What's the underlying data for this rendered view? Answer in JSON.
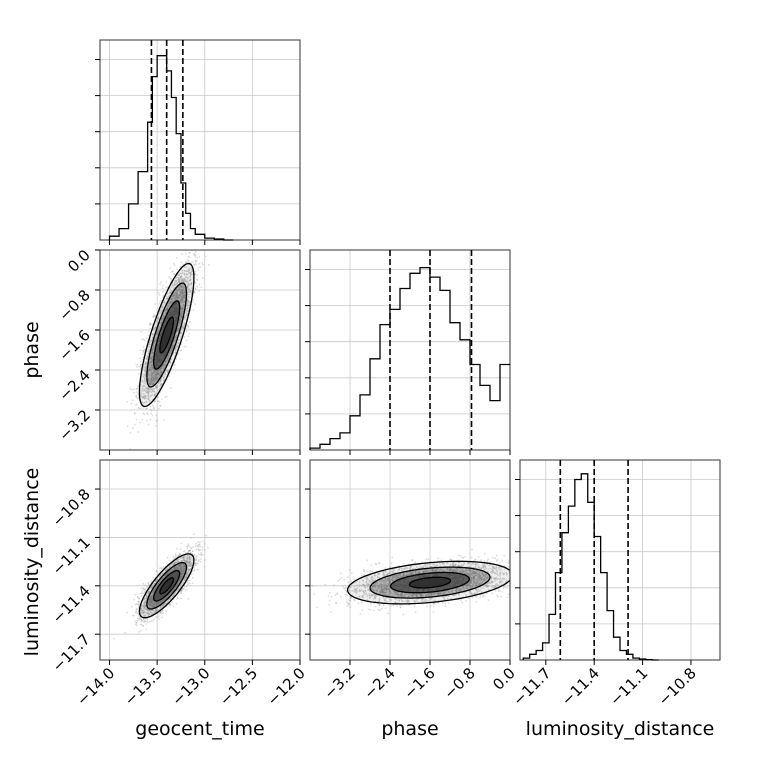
{
  "chart_data": {
    "type": "corner",
    "parameters": [
      "geocent_time",
      "phase",
      "luminosity_distance"
    ],
    "ranges": {
      "geocent_time": [
        -14.1,
        -12.0
      ],
      "phase": [
        -4.0,
        0.0
      ],
      "luminosity_distance": [
        -11.86,
        -10.62
      ]
    },
    "ticks": {
      "geocent_time": [
        "−14.0",
        "−13.5",
        "−13.0",
        "−12.5",
        "−12.0"
      ],
      "phase": [
        "−3.2",
        "−2.4",
        "−1.6",
        "−0.8",
        "0.0"
      ],
      "luminosity_distance": [
        "−11.7",
        "−11.4",
        "−11.1",
        "−10.8"
      ]
    },
    "tick_values": {
      "geocent_time": [
        -14.0,
        -13.5,
        -13.0,
        -12.5,
        -12.0
      ],
      "phase": [
        -3.2,
        -2.4,
        -1.6,
        -0.8,
        0.0
      ],
      "luminosity_distance": [
        -11.7,
        -11.4,
        -11.1,
        -10.8
      ]
    },
    "quantiles": {
      "geocent_time": [
        -13.56,
        -13.4,
        -13.23
      ],
      "phase": [
        -2.4,
        -1.6,
        -0.77
      ],
      "luminosity_distance": [
        -11.61,
        -11.4,
        -11.19
      ]
    },
    "histograms": {
      "geocent_time": {
        "edges": [
          -14.0,
          -13.9,
          -13.8,
          -13.7,
          -13.6,
          -13.55,
          -13.5,
          -13.45,
          -13.4,
          -13.35,
          -13.3,
          -13.25,
          -13.2,
          -13.15,
          -13.1,
          -13.0,
          -12.9,
          -12.8,
          -12.7
        ],
        "counts": [
          0.02,
          0.06,
          0.19,
          0.36,
          0.62,
          0.86,
          0.97,
          0.97,
          0.89,
          0.75,
          0.56,
          0.3,
          0.14,
          0.06,
          0.03,
          0.01,
          0.005,
          0.0
        ]
      },
      "phase": {
        "edges": [
          -4.0,
          -3.8,
          -3.6,
          -3.4,
          -3.2,
          -3.0,
          -2.8,
          -2.6,
          -2.4,
          -2.2,
          -2.0,
          -1.8,
          -1.6,
          -1.4,
          -1.2,
          -1.0,
          -0.8,
          -0.6,
          -0.4,
          -0.2,
          0.0
        ],
        "counts": [
          0.01,
          0.03,
          0.06,
          0.09,
          0.18,
          0.29,
          0.48,
          0.66,
          0.74,
          0.85,
          0.93,
          0.96,
          0.91,
          0.84,
          0.67,
          0.58,
          0.45,
          0.34,
          0.26,
          0.45
        ]
      },
      "luminosity_distance": {
        "edges": [
          -11.84,
          -11.8,
          -11.76,
          -11.72,
          -11.68,
          -11.64,
          -11.6,
          -11.56,
          -11.52,
          -11.48,
          -11.44,
          -11.4,
          -11.36,
          -11.32,
          -11.28,
          -11.24,
          -11.2,
          -11.16,
          -11.12,
          -11.08,
          -11.04,
          -11.0
        ],
        "counts": [
          0.01,
          0.03,
          0.05,
          0.09,
          0.24,
          0.46,
          0.67,
          0.81,
          0.95,
          0.98,
          0.83,
          0.65,
          0.46,
          0.26,
          0.12,
          0.05,
          0.03,
          0.01,
          0.005,
          0.002,
          0.0
        ]
      }
    },
    "pairs": [
      {
        "x": "geocent_time",
        "y": "phase",
        "center": [
          -13.4,
          -1.7
        ],
        "sd": [
          0.13,
          0.65
        ],
        "corr": 0.8,
        "samples": 3200
      },
      {
        "x": "geocent_time",
        "y": "luminosity_distance",
        "center": [
          -13.4,
          -11.4
        ],
        "sd": [
          0.13,
          0.09
        ],
        "corr": 0.8,
        "samples": 3200
      },
      {
        "x": "phase",
        "y": "luminosity_distance",
        "center": [
          -1.6,
          -11.38
        ],
        "sd": [
          0.75,
          0.06
        ],
        "corr": 0.35,
        "samples": 3200
      }
    ],
    "grid": true,
    "line_color": "#000000",
    "sample_color": "#9a9a9a",
    "density_color": "#2a2a2a"
  }
}
